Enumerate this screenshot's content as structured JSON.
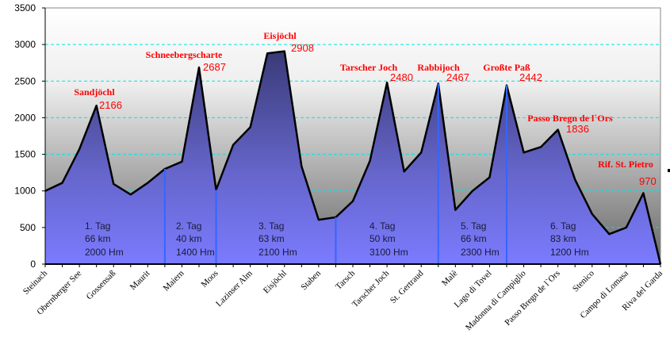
{
  "chart_data": {
    "type": "area",
    "title": "",
    "xlabel": "",
    "ylabel": "",
    "ylim": [
      0,
      3500
    ],
    "yticks": [
      "0",
      "500",
      "1000",
      "1500",
      "2000",
      "2500",
      "3000",
      "3500"
    ],
    "grid": true,
    "x_labels": [
      "Steinach",
      "Obernberger See",
      "Gossensaß",
      "Maurit",
      "Maiern",
      "Moos",
      "Lazinser Alm",
      "Eisjöchl",
      "Staben",
      "Tarsch",
      "Tarscher Joch",
      "St. Gertraud",
      "Malè",
      "Lago di Tovel",
      "Madonna di Campiglio",
      "Passo Bregn de l`Ors",
      "Stenico",
      "Campo di Lomasa",
      "Riva del Garda"
    ],
    "values": [
      1000,
      1110,
      1570,
      2166,
      1095,
      950,
      1110,
      1300,
      1400,
      2687,
      1015,
      1630,
      1870,
      2880,
      2908,
      1335,
      605,
      640,
      860,
      1410,
      2480,
      1265,
      1525,
      2467,
      740,
      1000,
      1185,
      2442,
      1525,
      1600,
      1836,
      1155,
      685,
      410,
      500,
      970,
      0
    ],
    "day_boundaries": [
      7,
      10,
      17,
      23,
      27
    ],
    "peaks": [
      {
        "index": 3,
        "name": "Sandjöchl",
        "value": "2166"
      },
      {
        "index": 9,
        "name": "Schneebergscharte",
        "value": "2687"
      },
      {
        "index": 14,
        "name": "Eisjöchl",
        "value": "2908"
      },
      {
        "index": 20,
        "name": "Tarscher Joch",
        "value": "2480"
      },
      {
        "index": 23,
        "name": "Rabbijoch",
        "value": "2467"
      },
      {
        "index": 27,
        "name": "Großte Paß",
        "value": "2442"
      },
      {
        "index": 30,
        "name": "Passo Bregn de l`Ors",
        "value": "1836"
      },
      {
        "index": 35,
        "name": "Rif. St. Pietro",
        "value": "970"
      }
    ],
    "days": [
      {
        "day": "1. Tag",
        "km": "66 km",
        "hm": "2000 Hm"
      },
      {
        "day": "2. Tag",
        "km": "40 km",
        "hm": "1400 Hm"
      },
      {
        "day": "3. Tag",
        "km": "63 km",
        "hm": "2100 Hm"
      },
      {
        "day": "4. Tag",
        "km": "50 km",
        "hm": "3100 Hm"
      },
      {
        "day": "5. Tag",
        "km": "66 km",
        "hm": "2300 Hm"
      },
      {
        "day": "6. Tag",
        "km": "83 km",
        "hm": "1200 Hm"
      }
    ],
    "colors": {
      "fill_top": "#3a3a78",
      "fill_bottom": "#7b7bff",
      "line": "#000000",
      "grid": "#00e5e5",
      "divider": "#3366ff",
      "label": "#ff0000"
    }
  }
}
